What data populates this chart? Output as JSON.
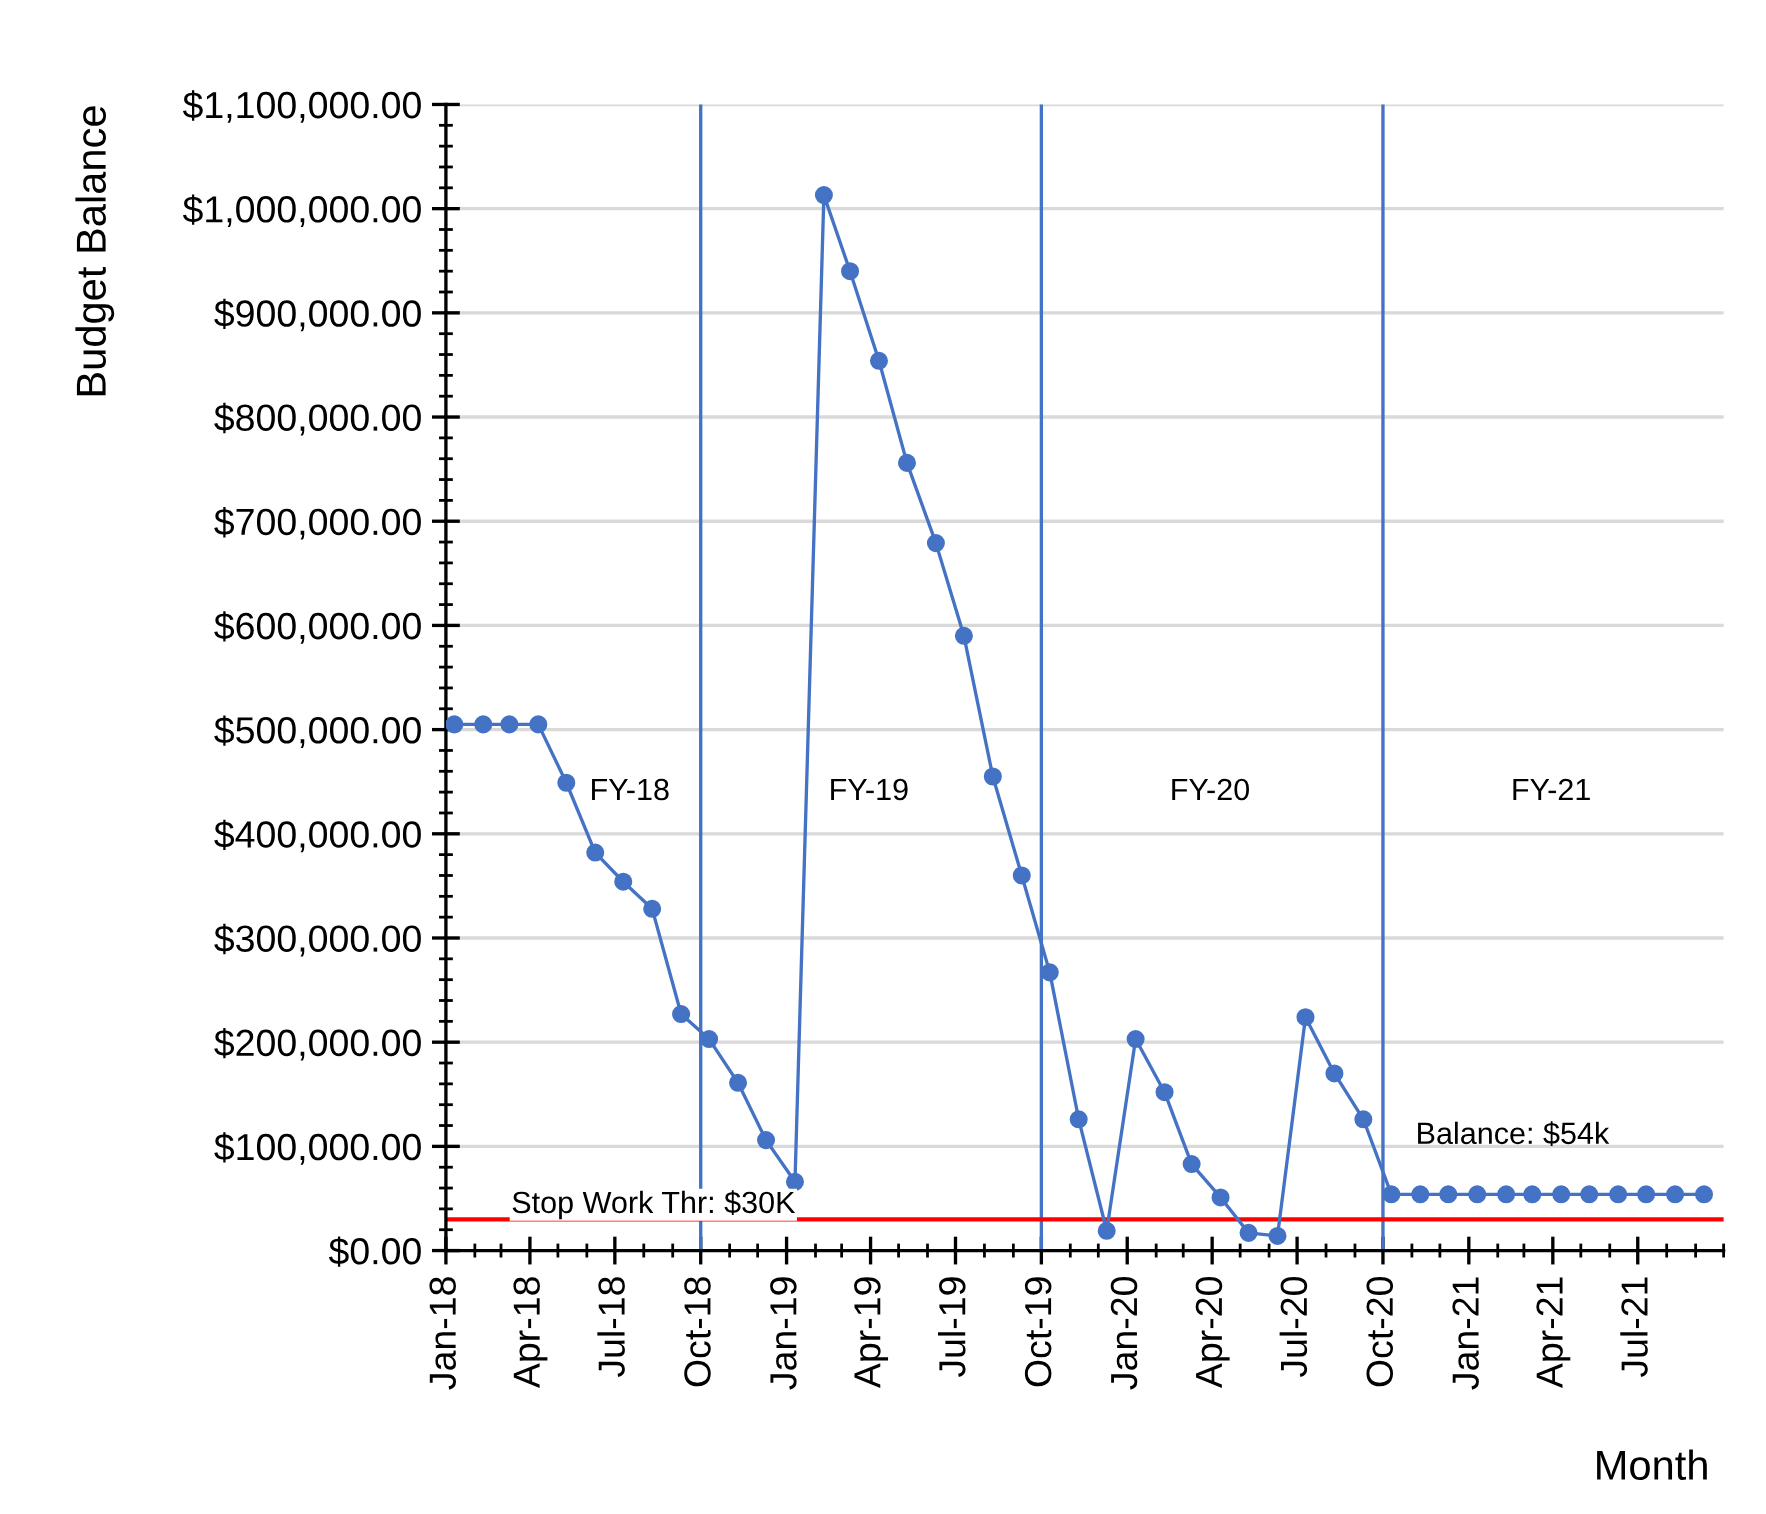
{
  "chart_data": {
    "type": "line",
    "xlabel": "Month",
    "ylabel": "Budget Balance",
    "x": [
      "2018-01-10",
      "2018-02-10",
      "2018-03-10",
      "2018-04-10",
      "2018-05-10",
      "2018-06-10",
      "2018-07-10",
      "2018-08-10",
      "2018-09-10",
      "2018-10-10",
      "2018-11-10",
      "2018-12-10",
      "2019-01-10",
      "2019-02-10",
      "2019-03-10",
      "2019-04-10",
      "2019-05-10",
      "2019-06-10",
      "2019-07-10",
      "2019-08-10",
      "2019-09-10",
      "2019-10-10",
      "2019-11-10",
      "2019-12-10",
      "2020-01-10",
      "2020-02-10",
      "2020-03-10",
      "2020-04-10",
      "2020-05-10",
      "2020-06-10",
      "2020-07-10",
      "2020-08-10",
      "2020-09-10",
      "2020-10-10",
      "2020-11-10",
      "2020-12-10",
      "2021-01-10",
      "2021-02-10",
      "2021-03-10",
      "2021-04-10",
      "2021-05-10",
      "2021-06-10",
      "2021-07-10",
      "2021-08-10",
      "2021-09-10"
    ],
    "series": [
      {
        "color": "#4472c4",
        "values": [
          505000,
          505000,
          505000,
          505000,
          449000,
          382000,
          354000,
          328000,
          227000,
          203000,
          161000,
          106000,
          66000,
          1013000,
          940000,
          854000,
          756000,
          679000,
          590000,
          455000,
          360000,
          267000,
          126000,
          19000,
          203000,
          152000,
          83000,
          51000,
          17000,
          14000,
          224000,
          170000,
          126000,
          54000,
          54000,
          54000,
          54000,
          54000,
          54000,
          54000,
          54000,
          54000,
          54000,
          54000,
          54000
        ]
      }
    ],
    "marker": "circle",
    "line_style": "solid",
    "grid": "y",
    "legend": false,
    "xlim": [
      "2018-01-01",
      "2021-10-01"
    ],
    "xticks": [
      {
        "value": "2018-01-01",
        "label": "Jan-18"
      },
      {
        "value": "2018-04-01",
        "label": "Apr-18"
      },
      {
        "value": "2018-07-01",
        "label": "Jul-18"
      },
      {
        "value": "2018-10-01",
        "label": "Oct-18"
      },
      {
        "value": "2019-01-01",
        "label": "Jan-19"
      },
      {
        "value": "2019-04-01",
        "label": "Apr-19"
      },
      {
        "value": "2019-07-01",
        "label": "Jul-19"
      },
      {
        "value": "2019-10-01",
        "label": "Oct-19"
      },
      {
        "value": "2020-01-01",
        "label": "Jan-20"
      },
      {
        "value": "2020-04-01",
        "label": "Apr-20"
      },
      {
        "value": "2020-07-01",
        "label": "Jul-20"
      },
      {
        "value": "2020-10-01",
        "label": "Oct-20"
      },
      {
        "value": "2021-01-01",
        "label": "Jan-21"
      },
      {
        "value": "2021-04-01",
        "label": "Apr-21"
      },
      {
        "value": "2021-07-01",
        "label": "Jul-21"
      }
    ],
    "ylim": [
      0,
      1100000
    ],
    "yticks": [
      {
        "value": 0,
        "label": "$0.00"
      },
      {
        "value": 100000,
        "label": "$100,000.00"
      },
      {
        "value": 200000,
        "label": "$200,000.00"
      },
      {
        "value": 300000,
        "label": "$300,000.00"
      },
      {
        "value": 400000,
        "label": "$400,000.00"
      },
      {
        "value": 500000,
        "label": "$500,000.00"
      },
      {
        "value": 600000,
        "label": "$600,000.00"
      },
      {
        "value": 700000,
        "label": "$700,000.00"
      },
      {
        "value": 800000,
        "label": "$800,000.00"
      },
      {
        "value": 900000,
        "label": "$900,000.00"
      },
      {
        "value": 1000000,
        "label": "$1,000,000.00"
      },
      {
        "value": 1100000,
        "label": "$1,100,000.00"
      }
    ],
    "ref_lines": [
      {
        "axis": "x",
        "value": "2018-10-01",
        "color": "#4472c4"
      },
      {
        "axis": "x",
        "value": "2019-10-01",
        "color": "#4472c4"
      },
      {
        "axis": "x",
        "value": "2020-10-01",
        "color": "#4472c4"
      },
      {
        "axis": "y",
        "value": 30000,
        "label": "Stop Work Thr: $30K",
        "color": "#ff0000"
      }
    ],
    "annotations": [
      "FY-18",
      "FY-19",
      "FY-20",
      "FY-21",
      "Balance: $54k"
    ]
  }
}
